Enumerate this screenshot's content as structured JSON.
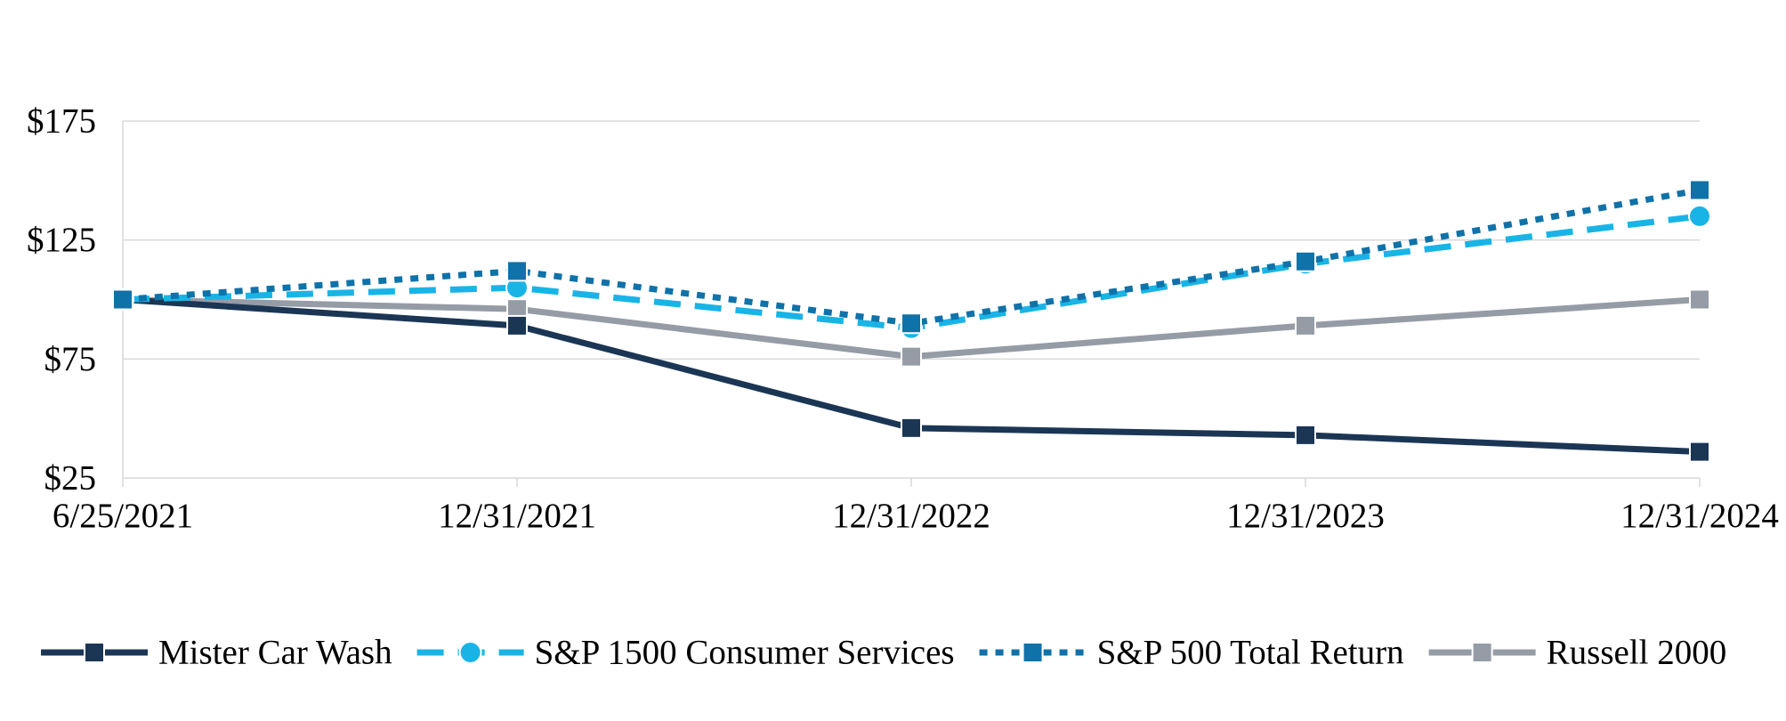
{
  "chart_data": {
    "type": "line",
    "title": "",
    "xlabel": "",
    "ylabel": "",
    "categories": [
      "6/25/2021",
      "12/31/2021",
      "12/31/2022",
      "12/31/2023",
      "12/31/2024"
    ],
    "y_ticks": [
      "$25",
      "$75",
      "$125",
      "$175"
    ],
    "ylim": [
      25,
      175
    ],
    "grid": true,
    "legend_position": "bottom",
    "series": [
      {
        "name": "Mister Car Wash",
        "values": [
          100,
          89,
          46,
          43,
          36
        ],
        "color": "#1b3655",
        "line_style": "solid",
        "marker": "square"
      },
      {
        "name": "S&P 1500 Consumer Services",
        "values": [
          100,
          105,
          88,
          115,
          135
        ],
        "color": "#19b4e6",
        "line_style": "dashed",
        "marker": "circle"
      },
      {
        "name": "S&P 500 Total Return",
        "values": [
          100,
          112,
          90,
          116,
          146
        ],
        "color": "#0f72a8",
        "line_style": "dotted",
        "marker": "square"
      },
      {
        "name": "Russell 2000",
        "values": [
          100,
          96,
          76,
          89,
          100
        ],
        "color": "#959ca6",
        "line_style": "solid",
        "marker": "square"
      }
    ]
  }
}
